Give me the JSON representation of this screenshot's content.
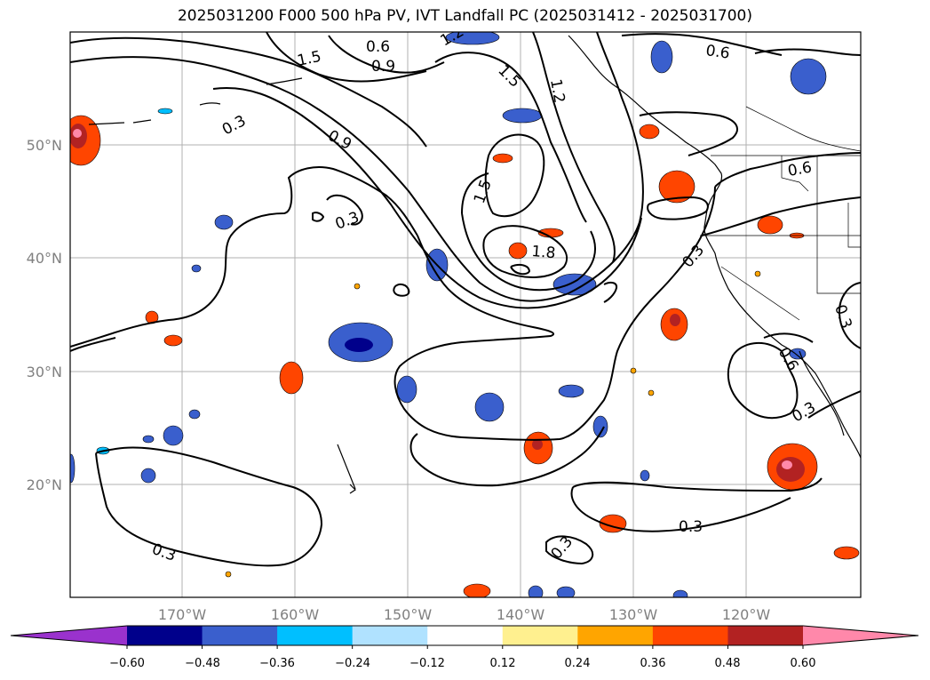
{
  "title": "2025031200 F000 500 hPa PV, IVT Landfall PC (2025031412 - 2025031700)",
  "lat_labels": [
    "50°N",
    "40°N",
    "30°N",
    "20°N"
  ],
  "lon_labels": [
    "170°W",
    "160°W",
    "150°W",
    "140°W",
    "130°W",
    "120°W"
  ],
  "contour_labels": [
    "1.5",
    "0.6",
    "0.9",
    "1.2",
    "1.5",
    "1.2",
    "0.6",
    "0.3",
    "0.9",
    "0.3",
    "1.5",
    "1.8",
    "0.6",
    "0.3",
    "0.3",
    "0.6",
    "0.3",
    "0.3",
    "0.3",
    "0.3"
  ],
  "colorbar": {
    "ticks": [
      "−0.60",
      "−0.48",
      "−0.36",
      "−0.24",
      "−0.12",
      "0.12",
      "0.24",
      "0.36",
      "0.48",
      "0.60"
    ],
    "colors": [
      "#9a32cd",
      "#00008b",
      "#3a5fcd",
      "#00bfff",
      "#b0e2ff",
      "#ffffff",
      "#fff08f",
      "#ffa500",
      "#ff4500",
      "#b22222",
      "#ff88aa"
    ]
  }
}
